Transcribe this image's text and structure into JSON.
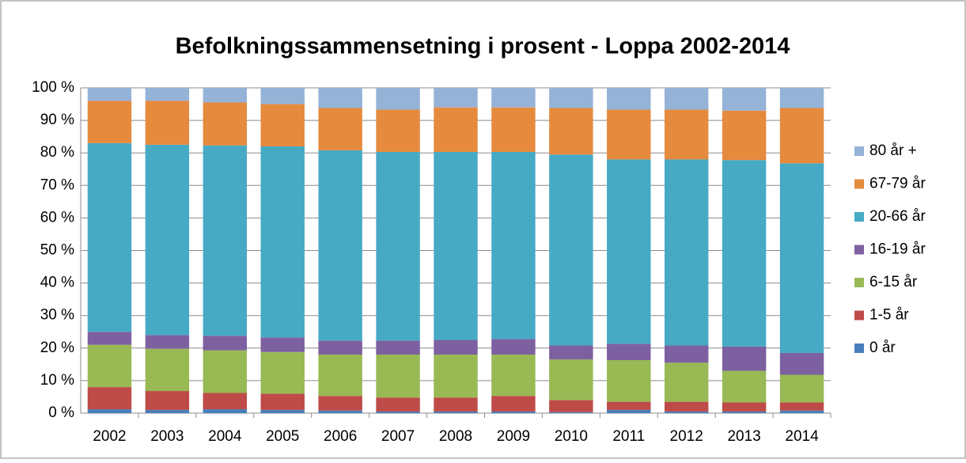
{
  "chart_data": {
    "type": "stacked_bar",
    "title": "Befolkningssammensetning i prosent - Loppa 2002-2014",
    "categories": [
      "2002",
      "2003",
      "2004",
      "2005",
      "2006",
      "2007",
      "2008",
      "2009",
      "2010",
      "2011",
      "2012",
      "2013",
      "2014"
    ],
    "series": [
      {
        "name": "0 år",
        "color": "#4a7ebb",
        "values": [
          1.2,
          1,
          1.2,
          1,
          0.8,
          0.5,
          0.5,
          0.5,
          0.3,
          1,
          0.5,
          0.5,
          0.8
        ]
      },
      {
        "name": "1-5 år",
        "color": "#be4b48",
        "values": [
          6.8,
          5.8,
          5,
          5,
          4.5,
          4.3,
          4.3,
          4.8,
          3.7,
          2.5,
          3,
          2.8,
          2.5
        ]
      },
      {
        "name": "6-15 år",
        "color": "#98b954",
        "values": [
          13,
          13,
          13.1,
          12.8,
          12.7,
          13.2,
          13.2,
          12.7,
          12.5,
          12.8,
          12,
          9.7,
          8.5
        ]
      },
      {
        "name": "16-19 år",
        "color": "#7d60a0",
        "values": [
          4,
          4.2,
          4.5,
          4.5,
          4.3,
          4.3,
          4.5,
          4.8,
          4.3,
          5,
          5.3,
          7.5,
          6.7
        ]
      },
      {
        "name": "20-66 år",
        "color": "#46aac5",
        "values": [
          58,
          58.5,
          58.5,
          58.7,
          58.5,
          58,
          57.8,
          57.5,
          58.7,
          56.7,
          57.2,
          57.3,
          58.3
        ]
      },
      {
        "name": "67-79 år",
        "color": "#e68a3e",
        "values": [
          13,
          13.5,
          13.2,
          13,
          13,
          13,
          13.7,
          13.7,
          14.3,
          15.3,
          15.3,
          15.2,
          17
        ]
      },
      {
        "name": "80 år +",
        "color": "#95b3d7",
        "values": [
          4,
          4,
          4.5,
          5,
          6.2,
          6.7,
          6,
          6,
          6.2,
          6.7,
          6.7,
          7,
          6.2
        ]
      }
    ],
    "ylim": [
      0,
      100
    ],
    "yticks": [
      {
        "value": 0,
        "label": "0 %"
      },
      {
        "value": 10,
        "label": "10 %"
      },
      {
        "value": 20,
        "label": "20 %"
      },
      {
        "value": 30,
        "label": "30 %"
      },
      {
        "value": 40,
        "label": "40 %"
      },
      {
        "value": 50,
        "label": "50 %"
      },
      {
        "value": 60,
        "label": "60 %"
      },
      {
        "value": 70,
        "label": "70 %"
      },
      {
        "value": 80,
        "label": "80 %"
      },
      {
        "value": 90,
        "label": "90 %"
      },
      {
        "value": 100,
        "label": "100 %"
      }
    ],
    "grid": true,
    "legend": "right"
  }
}
